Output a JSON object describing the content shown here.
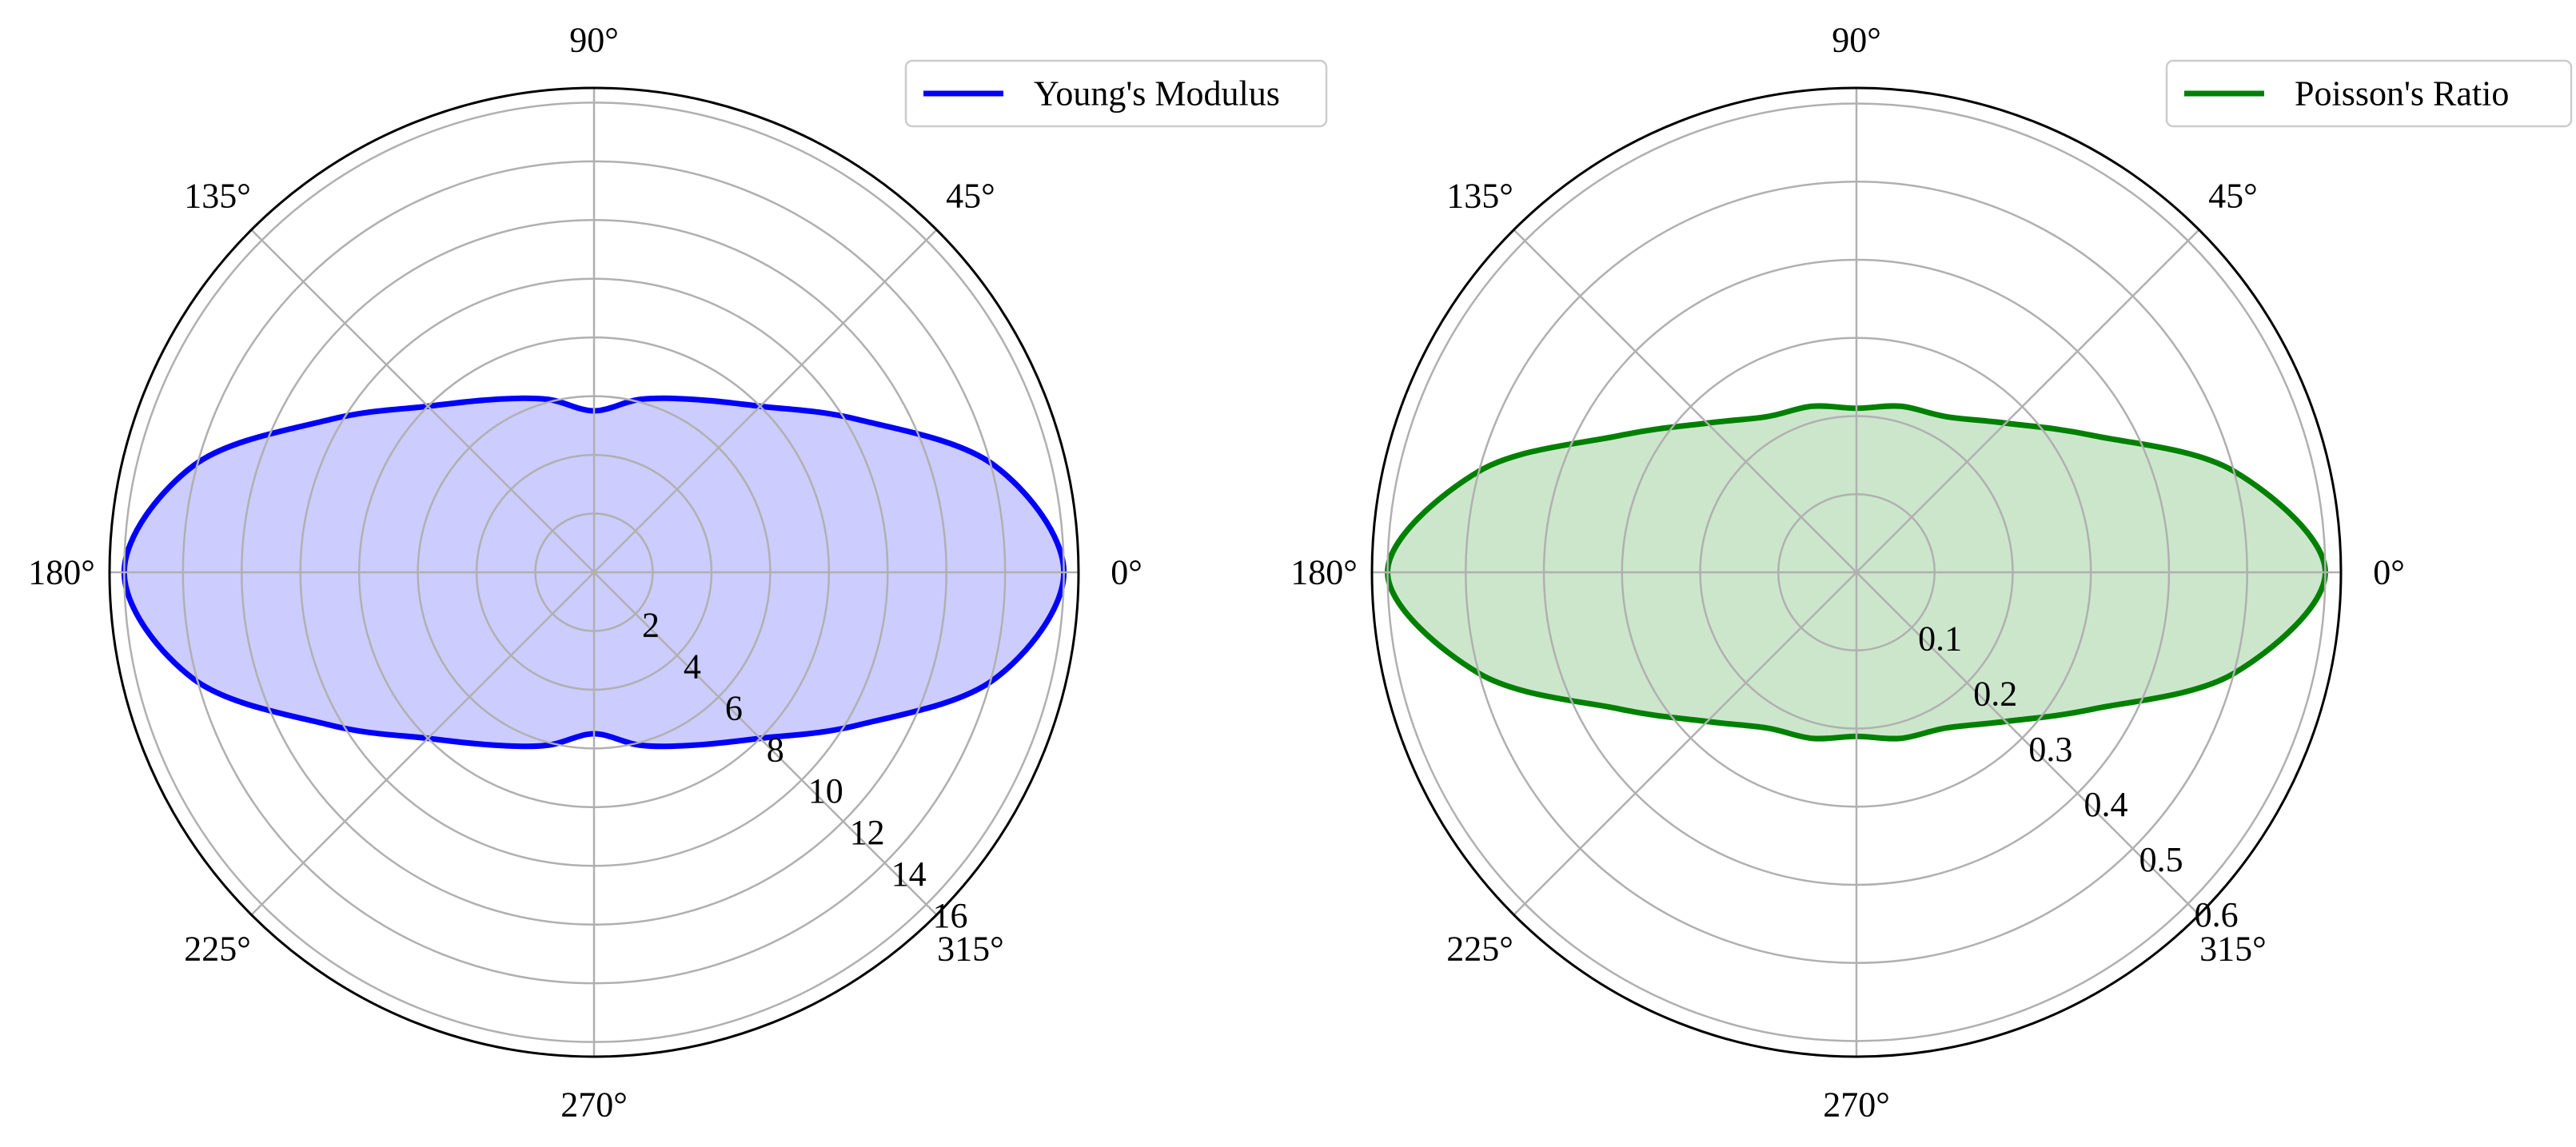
{
  "chart_data": [
    {
      "type": "polar-area",
      "theta_unit": "degrees",
      "theta_ticks": [
        "0°",
        "45°",
        "90°",
        "135°",
        "180°",
        "225°",
        "270°",
        "315°"
      ],
      "theta_tick_values": [
        0,
        45,
        90,
        135,
        180,
        225,
        270,
        315
      ],
      "r_ticks": [
        "2",
        "4",
        "6",
        "8",
        "10",
        "12",
        "14",
        "16"
      ],
      "r_tick_values": [
        2,
        4,
        6,
        8,
        10,
        12,
        14,
        16
      ],
      "rlim": [
        0,
        16.5
      ],
      "r_label_angle_deg": -45,
      "grid": true,
      "legend": "top-right",
      "series": [
        {
          "name": "Young's Modulus",
          "color": "#0000ff",
          "fill_color": "#ccccff",
          "theta": [
            0,
            15,
            30,
            45,
            60,
            75,
            90,
            105,
            120,
            135,
            150,
            165,
            180,
            195,
            210,
            225,
            240,
            255,
            270,
            285,
            300,
            315,
            330,
            345
          ],
          "r": [
            16.0,
            14.1,
            10.4,
            8.0,
            6.8,
            6.1,
            5.5,
            6.1,
            6.8,
            8.0,
            10.4,
            14.1,
            16.0,
            14.1,
            10.4,
            8.0,
            6.8,
            6.1,
            5.5,
            6.1,
            6.8,
            8.0,
            10.4,
            14.1
          ]
        }
      ]
    },
    {
      "type": "polar-area",
      "theta_unit": "degrees",
      "theta_ticks": [
        "0°",
        "45°",
        "90°",
        "135°",
        "180°",
        "225°",
        "270°",
        "315°"
      ],
      "theta_tick_values": [
        0,
        45,
        90,
        135,
        180,
        225,
        270,
        315
      ],
      "r_ticks": [
        "0.1",
        "0.2",
        "0.3",
        "0.4",
        "0.5",
        "0.6"
      ],
      "r_tick_values": [
        0.1,
        0.2,
        0.3,
        0.4,
        0.5,
        0.6
      ],
      "rlim": [
        0,
        0.62
      ],
      "r_label_angle_deg": -45,
      "grid": true,
      "legend": "top-right",
      "series": [
        {
          "name": "Poisson's Ratio",
          "color": "#008000",
          "fill_color": "#cce6cc",
          "theta": [
            0,
            15,
            30,
            45,
            60,
            75,
            90,
            105,
            120,
            135,
            150,
            165,
            180,
            195,
            210,
            225,
            240,
            255,
            270,
            285,
            300,
            315,
            330,
            345
          ],
          "r": [
            0.6,
            0.5,
            0.35,
            0.27,
            0.23,
            0.22,
            0.21,
            0.22,
            0.23,
            0.27,
            0.35,
            0.5,
            0.6,
            0.5,
            0.35,
            0.27,
            0.23,
            0.22,
            0.21,
            0.22,
            0.23,
            0.27,
            0.35,
            0.5
          ]
        }
      ]
    }
  ]
}
